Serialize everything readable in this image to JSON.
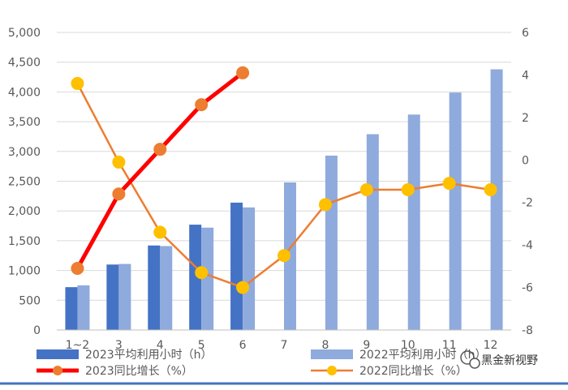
{
  "chart_data": {
    "type": "bar+line",
    "categories": [
      "1~2",
      "3",
      "4",
      "5",
      "6",
      "7",
      "8",
      "9",
      "10",
      "11",
      "12"
    ],
    "y_left": {
      "ylim": [
        0,
        5000
      ],
      "ticks": [
        "0",
        "500",
        "1,000",
        "1,500",
        "2,000",
        "2,500",
        "3,000",
        "3,500",
        "4,000",
        "4,500",
        "5,000"
      ]
    },
    "y_right": {
      "ylim": [
        -8,
        6
      ],
      "ticks": [
        "-8",
        "-6",
        "-4",
        "-2",
        "0",
        "2",
        "4",
        "6"
      ]
    },
    "series": [
      {
        "name": "2023平均利用小时（h）",
        "kind": "bar",
        "axis": "left",
        "color": "#4472c4",
        "values": [
          720,
          1100,
          1420,
          1770,
          2140,
          null,
          null,
          null,
          null,
          null,
          null
        ]
      },
      {
        "name": "2022平均利用小时（h）",
        "kind": "bar",
        "axis": "left",
        "color": "#8faadc",
        "values": [
          750,
          1110,
          1410,
          1720,
          2060,
          2480,
          2930,
          3290,
          3620,
          3990,
          4380
        ]
      },
      {
        "name": "2023同比增长（%）",
        "kind": "line",
        "axis": "right",
        "color": "#ff0000",
        "marker": "#ed7d31",
        "values": [
          -5.1,
          -1.6,
          0.5,
          2.6,
          4.1,
          null,
          null,
          null,
          null,
          null,
          null
        ]
      },
      {
        "name": "2022同比增长（%）",
        "kind": "line",
        "axis": "right",
        "color": "#ed7d31",
        "marker": "#ffc000",
        "values": [
          3.6,
          -0.1,
          -3.4,
          -5.3,
          -6.0,
          -4.5,
          -2.1,
          -1.4,
          -1.4,
          -1.1,
          -1.4
        ]
      }
    ],
    "legend_position": "bottom",
    "grid": true
  },
  "watermark": {
    "text": "黑金新视野"
  }
}
